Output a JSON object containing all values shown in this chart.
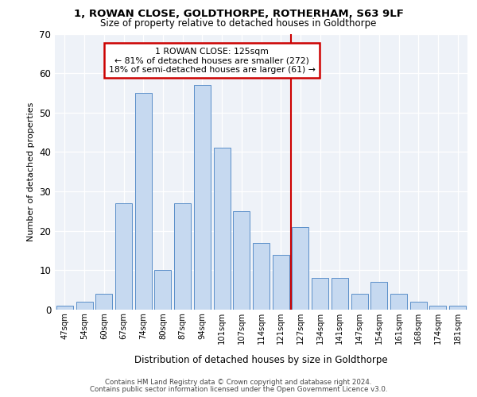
{
  "title1": "1, ROWAN CLOSE, GOLDTHORPE, ROTHERHAM, S63 9LF",
  "title2": "Size of property relative to detached houses in Goldthorpe",
  "xlabel": "Distribution of detached houses by size in Goldthorpe",
  "ylabel": "Number of detached properties",
  "categories": [
    "47sqm",
    "54sqm",
    "60sqm",
    "67sqm",
    "74sqm",
    "80sqm",
    "87sqm",
    "94sqm",
    "101sqm",
    "107sqm",
    "114sqm",
    "121sqm",
    "127sqm",
    "134sqm",
    "141sqm",
    "147sqm",
    "154sqm",
    "161sqm",
    "168sqm",
    "174sqm",
    "181sqm"
  ],
  "values": [
    1,
    2,
    4,
    27,
    55,
    10,
    27,
    57,
    41,
    25,
    17,
    14,
    21,
    8,
    8,
    4,
    7,
    4,
    2,
    1,
    1
  ],
  "bar_color": "#c6d9f0",
  "bar_edge_color": "#5b8fc9",
  "vline_x": 11.5,
  "vline_color": "#cc0000",
  "annotation_title": "1 ROWAN CLOSE: 125sqm",
  "annotation_line1": "← 81% of detached houses are smaller (272)",
  "annotation_line2": "18% of semi-detached houses are larger (61) →",
  "annotation_box_color": "#cc0000",
  "footer1": "Contains HM Land Registry data © Crown copyright and database right 2024.",
  "footer2": "Contains public sector information licensed under the Open Government Licence v3.0.",
  "ylim": [
    0,
    70
  ],
  "yticks": [
    0,
    10,
    20,
    30,
    40,
    50,
    60,
    70
  ],
  "bg_color": "#eef2f8",
  "plot_bg": "#eef2f8"
}
